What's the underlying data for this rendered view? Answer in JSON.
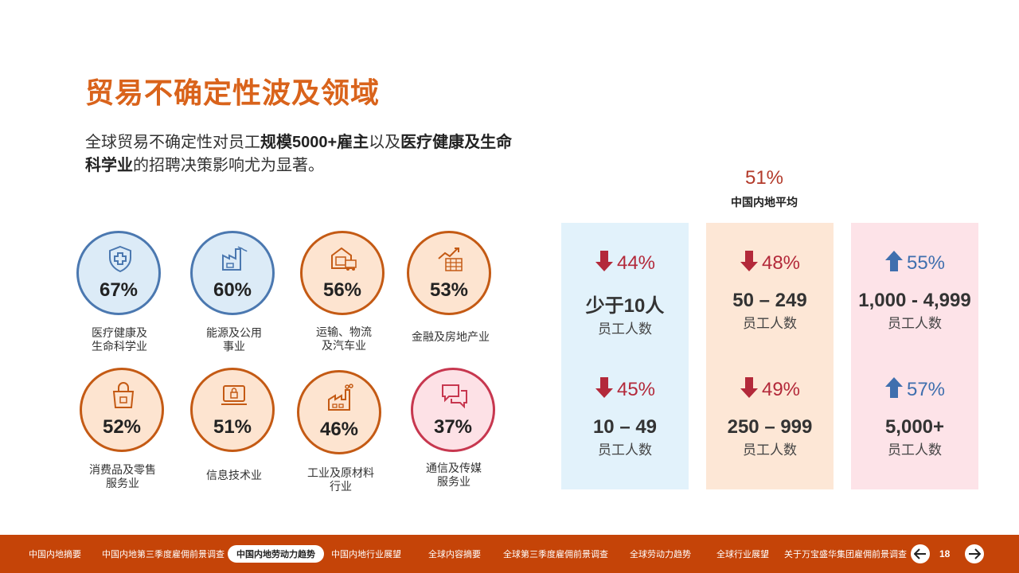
{
  "title": "贸易不确定性波及领域",
  "intro": {
    "p1": "全球贸易不确定性对员工",
    "b1": "规模5000+雇主",
    "p2": "以及",
    "b2": "医疗健康及生命科学业",
    "p3": "的招聘决策影响尤为显著。"
  },
  "sectors": [
    {
      "pct": "67%",
      "line1": "医疗健康及",
      "line2": "生命科学业",
      "icon": "shield-cross-icon"
    },
    {
      "pct": "60%",
      "line1": "能源及公用",
      "line2": "事业",
      "icon": "factory-energy-icon"
    },
    {
      "pct": "56%",
      "line1": "运输、物流",
      "line2": "及汽车业",
      "icon": "warehouse-truck-icon"
    },
    {
      "pct": "53%",
      "line1": "金融及房地产业",
      "line2": "",
      "icon": "chart-building-icon"
    },
    {
      "pct": "52%",
      "line1": "消费品及零售",
      "line2": "服务业",
      "icon": "shopping-bag-icon"
    },
    {
      "pct": "51%",
      "line1": "信息技术业",
      "line2": "",
      "icon": "laptop-lock-icon"
    },
    {
      "pct": "46%",
      "line1": "工业及原材料",
      "line2": "行业",
      "icon": "industrial-plant-icon"
    },
    {
      "pct": "37%",
      "line1": "通信及传媒",
      "line2": "服务业",
      "icon": "chat-bubbles-icon"
    }
  ],
  "average": {
    "pct": "51%",
    "label": "中国内地平均"
  },
  "sizes": [
    {
      "pct": "44%",
      "dir": "down",
      "size": "少于10人",
      "unit": "员工人数"
    },
    {
      "pct": "45%",
      "dir": "down",
      "size": "10 – 49",
      "unit": "员工人数"
    },
    {
      "pct": "48%",
      "dir": "down",
      "size": "50 – 249",
      "unit": "员工人数"
    },
    {
      "pct": "49%",
      "dir": "down",
      "size": "250 – 999",
      "unit": "员工人数"
    },
    {
      "pct": "55%",
      "dir": "up",
      "size": "1,000 - 4,999",
      "unit": "员工人数"
    },
    {
      "pct": "57%",
      "dir": "up",
      "size": "5,000+",
      "unit": "员工人数"
    }
  ],
  "footer": {
    "items": [
      "中国内地摘要",
      "中国内地第三季度雇佣前景调查",
      "中国内地劳动力趋势",
      "中国内地行业展望",
      "全球内容摘要",
      "全球第三季度雇佣前景调查",
      "全球劳动力趋势",
      "全球行业展望",
      "关于万宝盛华集团雇佣前景调查"
    ],
    "page": "18"
  },
  "colors": {
    "accent": "#d9631b",
    "footer": "#c54408",
    "down": "#b3293a",
    "up": "#3f6fae"
  }
}
